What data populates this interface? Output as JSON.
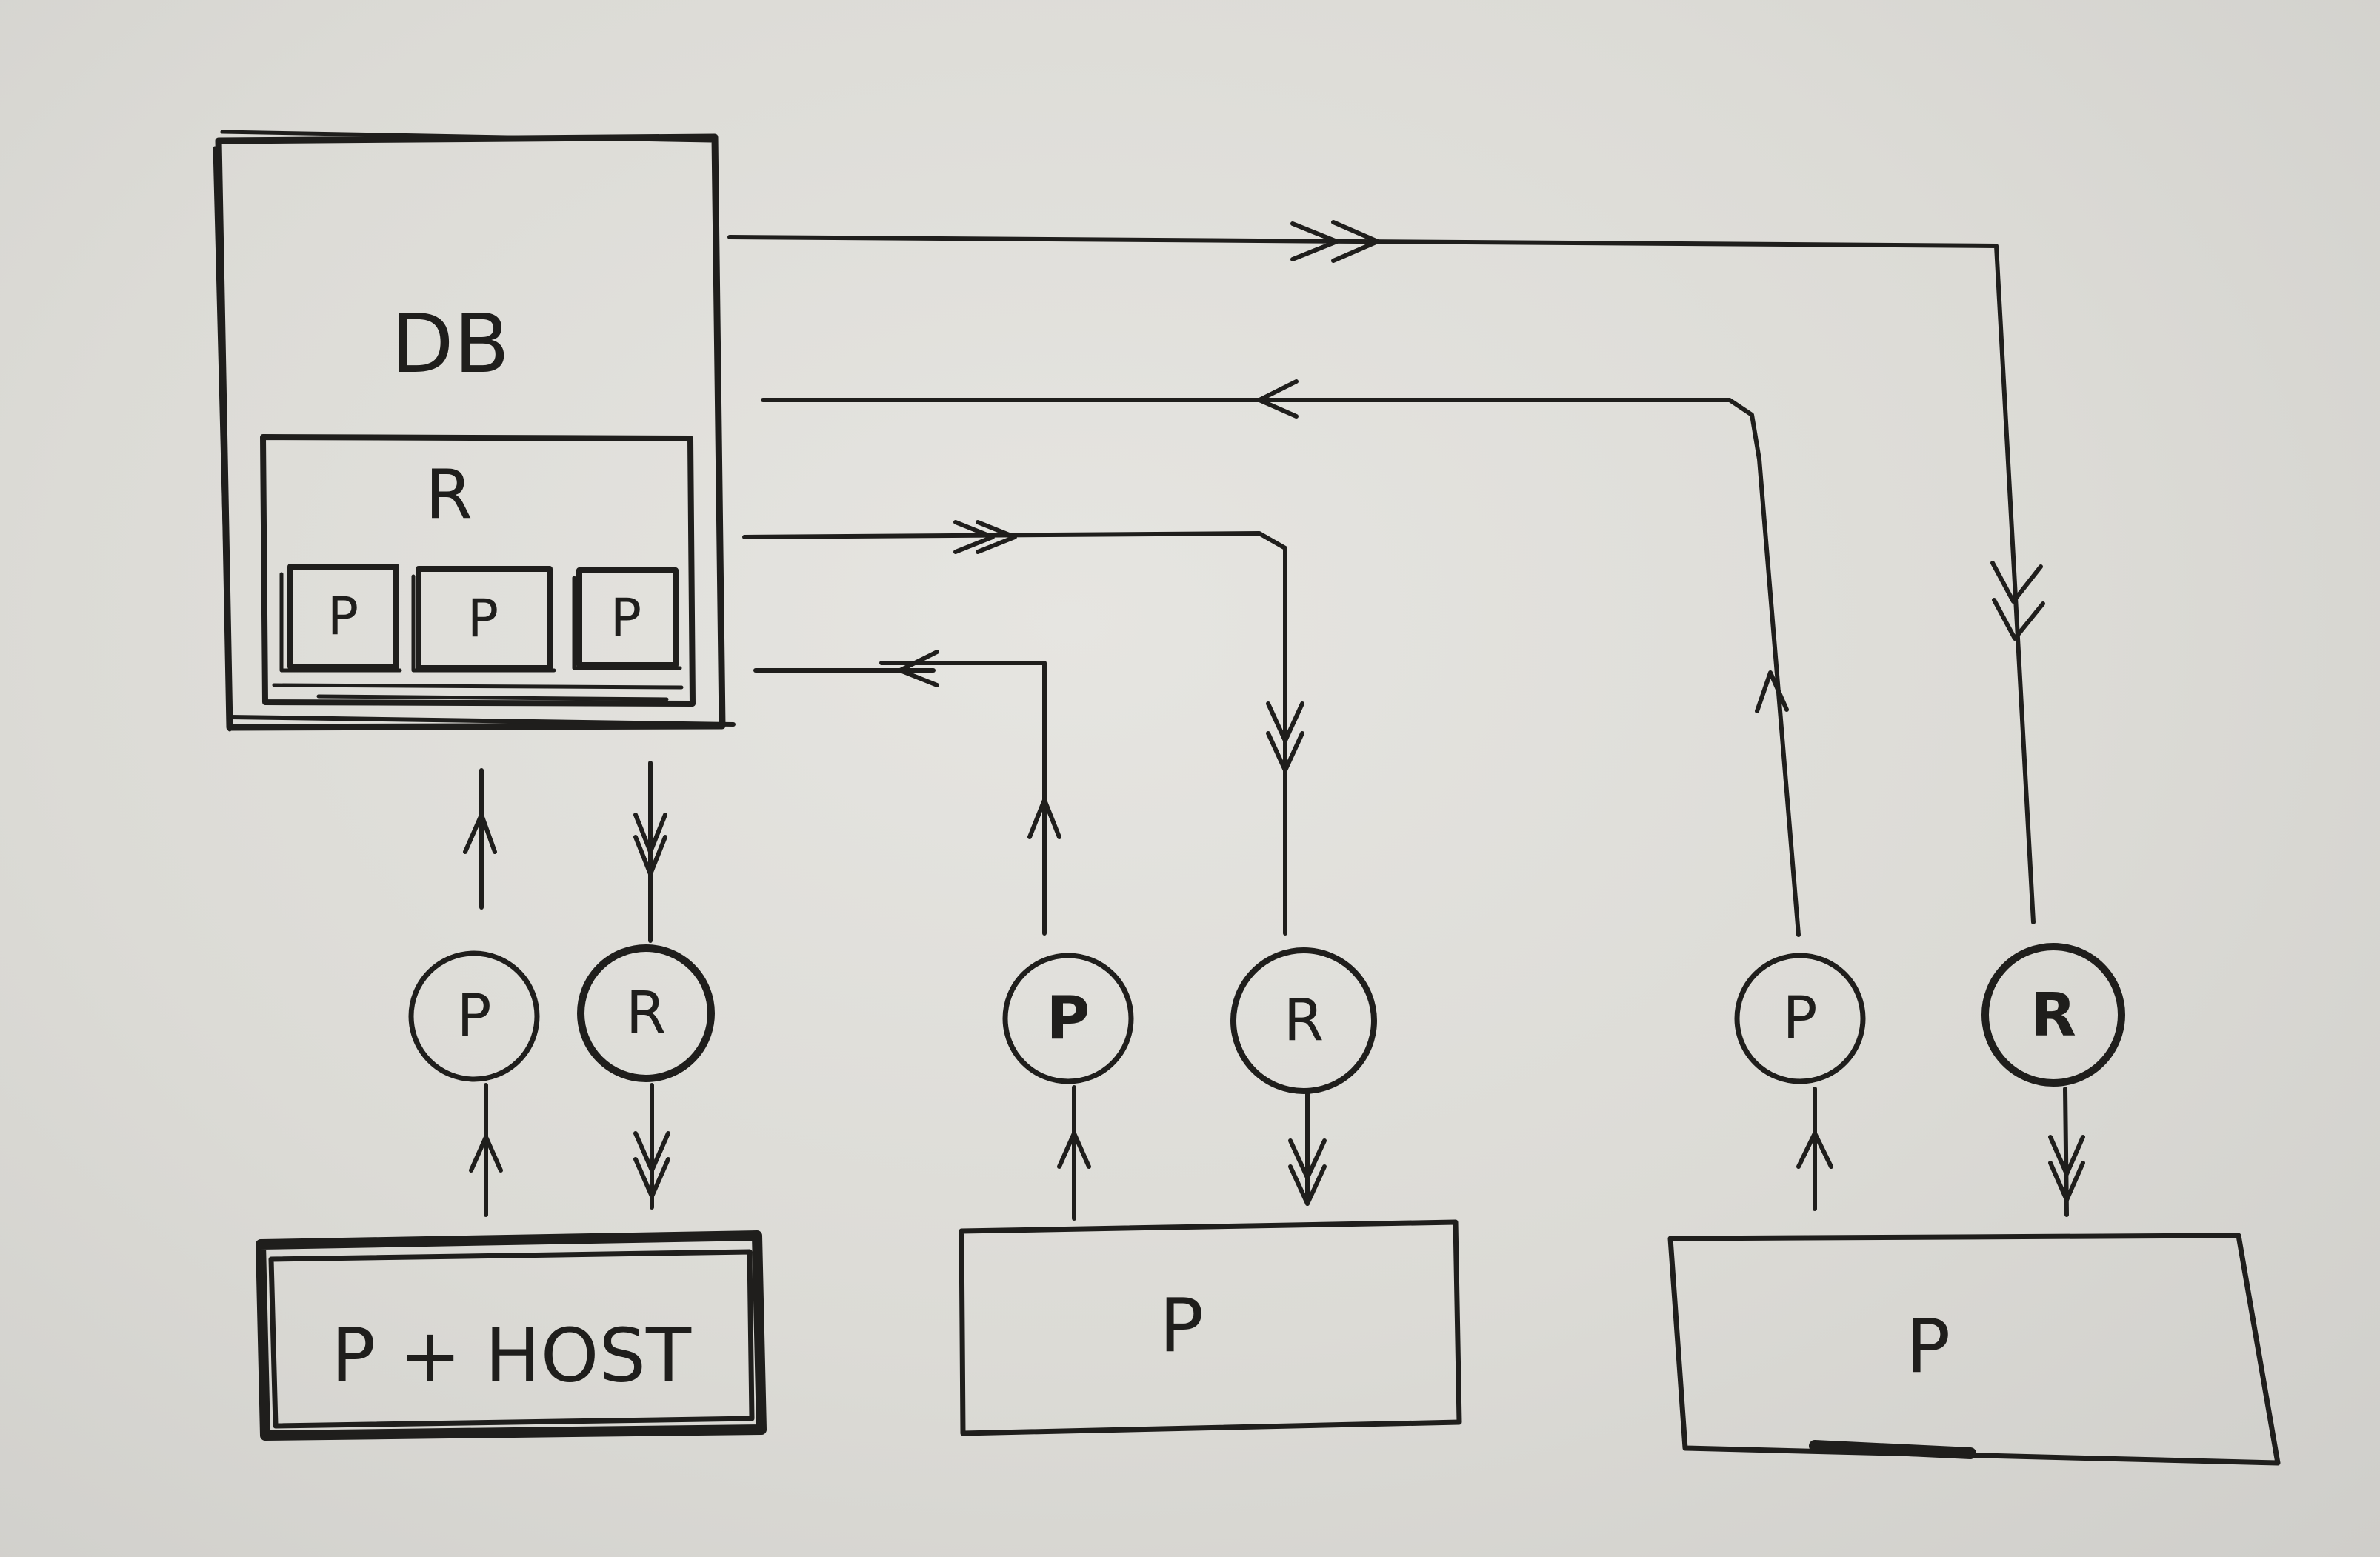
{
  "db": {
    "title": "DB",
    "replica_label": "R",
    "partitions": [
      "P",
      "P",
      "P"
    ]
  },
  "nodes": [
    {
      "producer": "P",
      "replicator": "R",
      "box_label": "P + HOST"
    },
    {
      "producer": "P",
      "replicator": "R",
      "box_label": "P"
    },
    {
      "producer": "P",
      "replicator": "R",
      "box_label": "P"
    }
  ]
}
